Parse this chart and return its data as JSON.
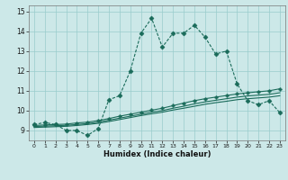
{
  "xlabel": "Humidex (Indice chaleur)",
  "background_color": "#cce8e8",
  "grid_color": "#99cccc",
  "line_color": "#1a6b5a",
  "xlim": [
    -0.5,
    23.5
  ],
  "ylim": [
    8.5,
    15.3
  ],
  "yticks": [
    9,
    10,
    11,
    12,
    13,
    14,
    15
  ],
  "xticks": [
    0,
    1,
    2,
    3,
    4,
    5,
    6,
    7,
    8,
    9,
    10,
    11,
    12,
    13,
    14,
    15,
    16,
    17,
    18,
    19,
    20,
    21,
    22,
    23
  ],
  "series": [
    {
      "x": [
        0,
        1,
        2,
        3,
        4,
        5,
        6,
        7,
        8,
        9,
        10,
        11,
        12,
        13,
        14,
        15,
        16,
        17,
        18,
        19,
        20,
        21,
        22,
        23
      ],
      "y": [
        9.3,
        9.4,
        9.3,
        9.0,
        9.0,
        8.75,
        9.1,
        10.55,
        10.75,
        12.0,
        13.9,
        14.65,
        13.2,
        13.9,
        13.9,
        14.3,
        13.7,
        12.85,
        13.0,
        11.35,
        10.5,
        10.3,
        10.5,
        9.9
      ],
      "style": "dotted",
      "marker": "D",
      "markersize": 2.5,
      "lw": 0.8
    },
    {
      "x": [
        0,
        1,
        2,
        3,
        4,
        5,
        6,
        7,
        8,
        9,
        10,
        11,
        12,
        13,
        14,
        15,
        16,
        17,
        18,
        19,
        20,
        21,
        22,
        23
      ],
      "y": [
        9.25,
        9.28,
        9.3,
        9.32,
        9.38,
        9.42,
        9.5,
        9.6,
        9.72,
        9.82,
        9.92,
        10.02,
        10.12,
        10.25,
        10.38,
        10.5,
        10.6,
        10.68,
        10.76,
        10.84,
        10.9,
        10.95,
        11.0,
        11.1
      ],
      "style": "solid",
      "marker": "P",
      "markersize": 2.5,
      "lw": 0.8
    },
    {
      "x": [
        0,
        1,
        2,
        3,
        4,
        5,
        6,
        7,
        8,
        9,
        10,
        11,
        12,
        13,
        14,
        15,
        16,
        17,
        18,
        19,
        20,
        21,
        22,
        23
      ],
      "y": [
        9.2,
        9.22,
        9.24,
        9.26,
        9.3,
        9.35,
        9.42,
        9.52,
        9.62,
        9.72,
        9.82,
        9.92,
        10.0,
        10.12,
        10.22,
        10.34,
        10.44,
        10.52,
        10.6,
        10.68,
        10.74,
        10.78,
        10.82,
        10.9
      ],
      "style": "solid",
      "marker": null,
      "markersize": 0,
      "lw": 0.8
    },
    {
      "x": [
        0,
        1,
        2,
        3,
        4,
        5,
        6,
        7,
        8,
        9,
        10,
        11,
        12,
        13,
        14,
        15,
        16,
        17,
        18,
        19,
        20,
        21,
        22,
        23
      ],
      "y": [
        9.15,
        9.17,
        9.19,
        9.21,
        9.25,
        9.3,
        9.36,
        9.45,
        9.55,
        9.65,
        9.75,
        9.84,
        9.92,
        10.03,
        10.12,
        10.22,
        10.32,
        10.4,
        10.47,
        10.55,
        10.6,
        10.64,
        10.68,
        10.75
      ],
      "style": "solid",
      "marker": null,
      "markersize": 0,
      "lw": 0.8
    }
  ]
}
